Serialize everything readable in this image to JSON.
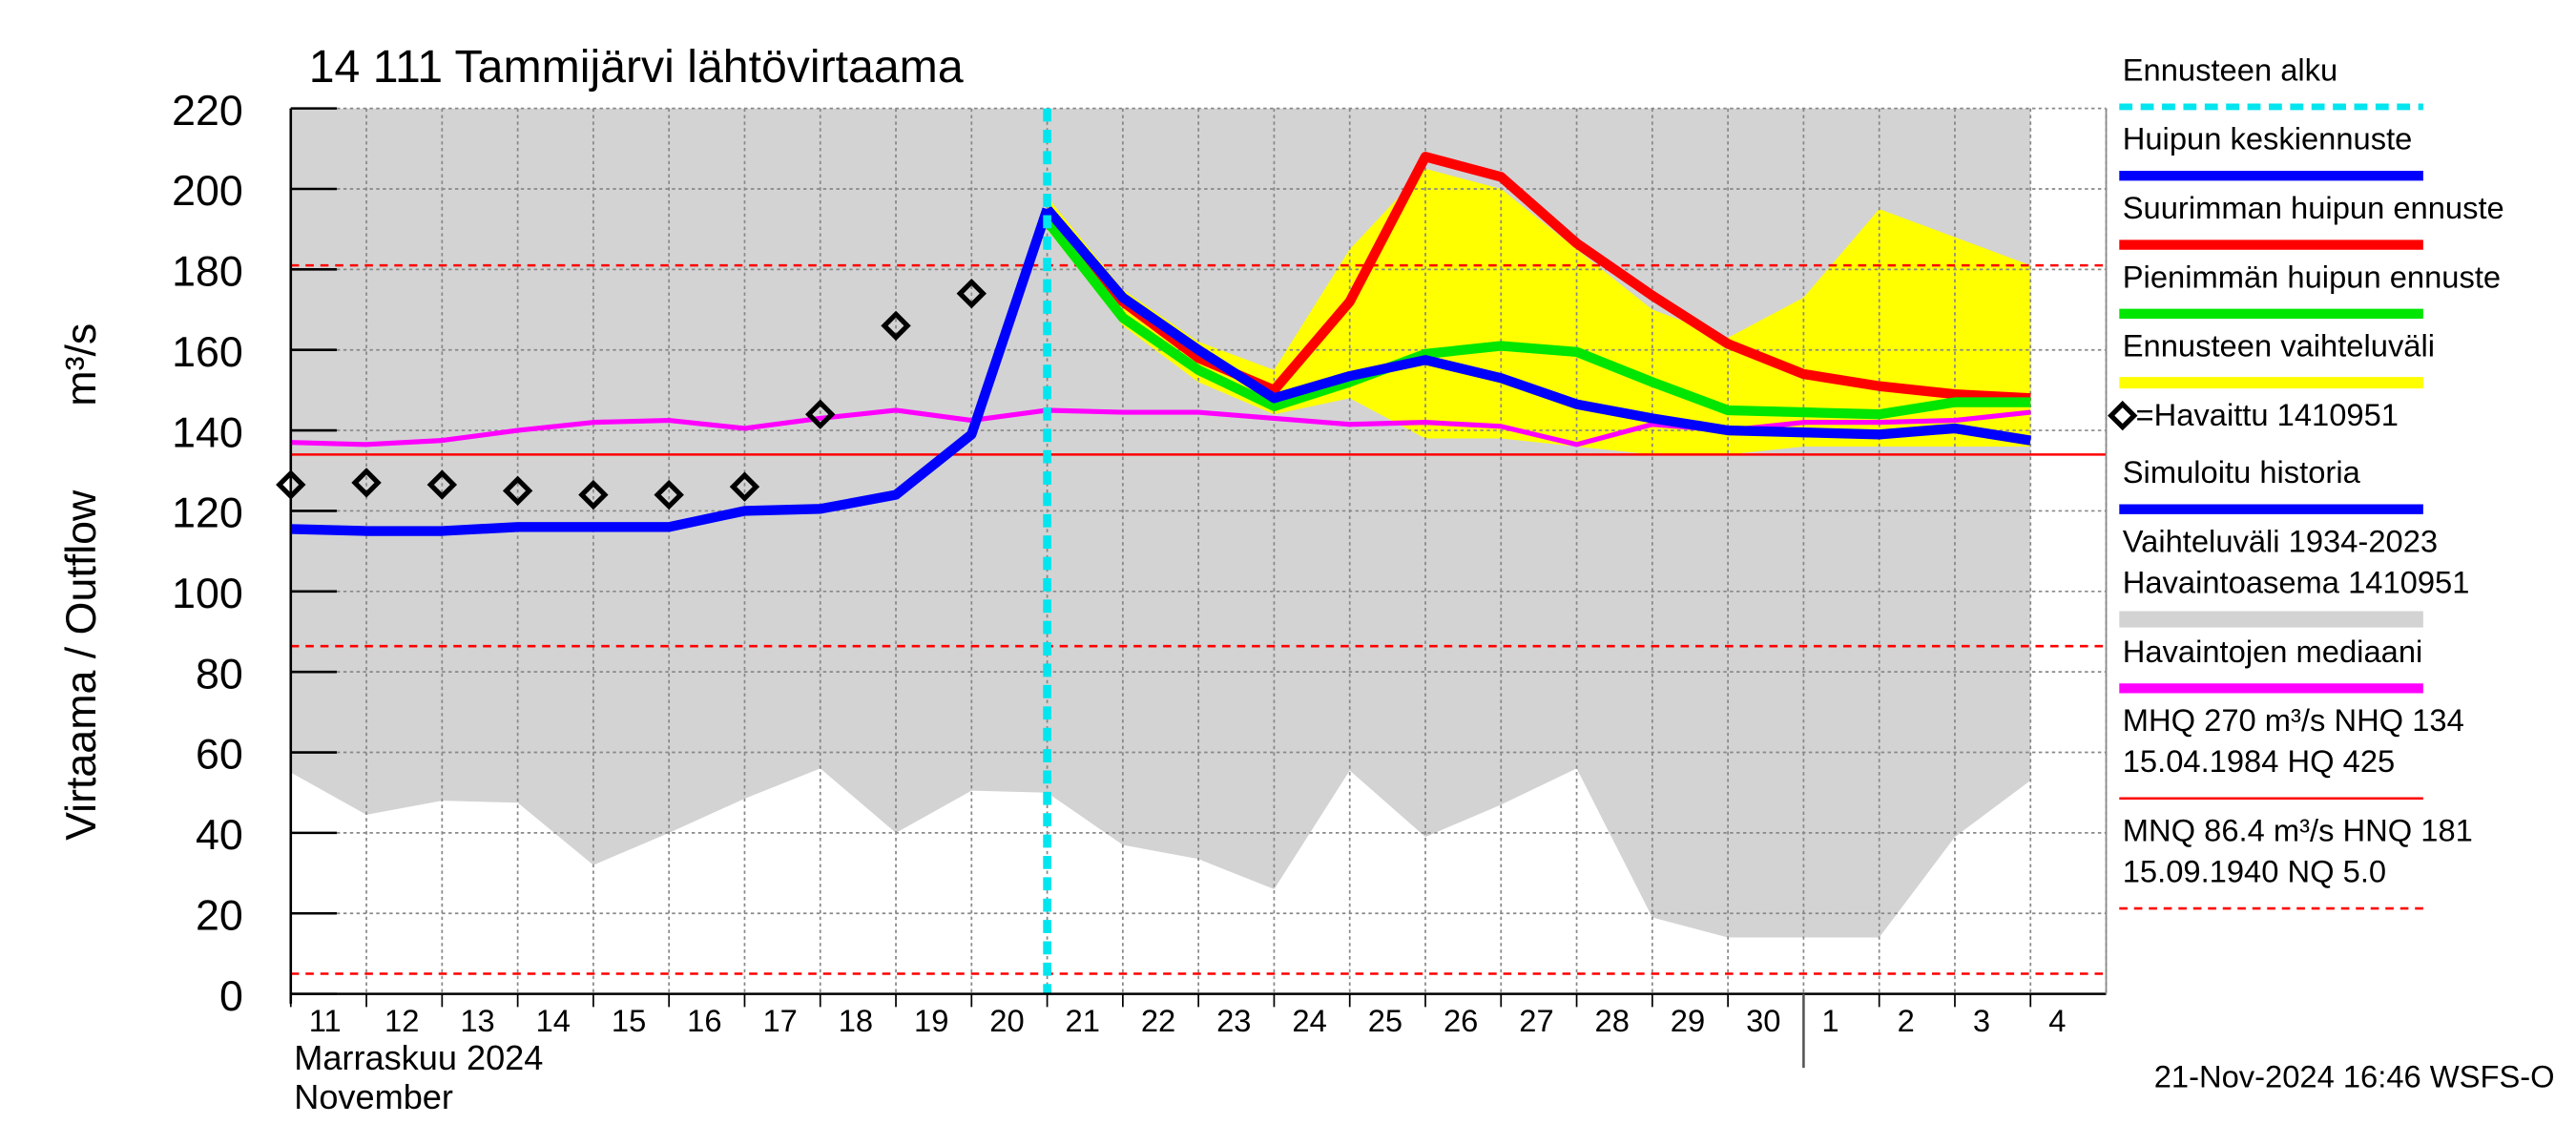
{
  "chart_data": {
    "type": "line",
    "title": "14 111 Tammijärvi lähtövirtaama",
    "ylabel": "Virtaama / Outflow",
    "yunit": "m³/s",
    "xlabel_lines": [
      "Marraskuu 2024",
      "November"
    ],
    "footer": "21-Nov-2024 16:46 WSFS-O",
    "categories": [
      "11",
      "12",
      "13",
      "14",
      "15",
      "16",
      "17",
      "18",
      "19",
      "20",
      "21",
      "22",
      "23",
      "24",
      "25",
      "26",
      "27",
      "28",
      "29",
      "30",
      "1",
      "2",
      "3",
      "4"
    ],
    "ylim": [
      0,
      220
    ],
    "yticks": [
      0,
      20,
      40,
      60,
      80,
      100,
      120,
      140,
      160,
      180,
      200,
      220
    ],
    "grid": true,
    "forecast_start": {
      "name": "Ennusteen alku",
      "color": "#00e5ee",
      "category": "21"
    },
    "series": [
      {
        "name": "Huipun keskiennuste",
        "color": "#0000ff",
        "style": "line",
        "width": 6,
        "values": [
          null,
          null,
          null,
          null,
          null,
          null,
          null,
          null,
          null,
          null,
          195,
          173,
          160,
          148,
          153.5,
          157.5,
          153,
          146.5,
          143,
          140,
          139.5,
          139,
          140.5,
          137.5
        ]
      },
      {
        "name": "Suurimman huipun ennuste",
        "color": "#ff0000",
        "style": "line",
        "width": 6,
        "values": [
          null,
          null,
          null,
          null,
          null,
          null,
          null,
          null,
          null,
          null,
          195,
          172,
          158,
          150,
          172,
          208,
          203,
          186.5,
          173.5,
          161.5,
          154,
          151,
          149,
          148
        ]
      },
      {
        "name": "Pienimmän huipun ennuste",
        "color": "#00e600",
        "style": "line",
        "width": 6,
        "values": [
          null,
          null,
          null,
          null,
          null,
          null,
          null,
          null,
          null,
          null,
          192,
          168,
          155,
          146,
          152,
          159,
          161,
          159.5,
          152,
          145,
          144.5,
          144,
          147,
          147
        ]
      },
      {
        "name": "Ennusteen vaihteluväli",
        "color": "#ffff00",
        "style": "band",
        "upper": [
          null,
          null,
          null,
          null,
          null,
          null,
          null,
          null,
          null,
          null,
          198,
          175,
          162,
          155,
          185,
          205,
          200,
          185,
          170,
          163,
          173,
          195,
          188,
          181
        ],
        "lower": [
          null,
          null,
          null,
          null,
          null,
          null,
          null,
          null,
          null,
          null,
          190,
          166,
          152,
          144,
          148,
          138,
          138,
          136,
          134,
          134,
          136,
          136,
          136,
          136
        ]
      },
      {
        "name": "=Havaittu 1410951",
        "color": "#000000",
        "style": "diamond",
        "values": [
          126.5,
          127,
          126.5,
          125,
          124,
          124,
          126,
          144,
          166,
          174,
          null,
          null,
          null,
          null,
          null,
          null,
          null,
          null,
          null,
          null,
          null,
          null,
          null,
          null
        ]
      },
      {
        "name": "Simuloitu historia",
        "color": "#0000ff",
        "style": "line",
        "width": 6,
        "values": [
          115.5,
          115,
          115,
          116,
          116,
          116,
          120,
          120.5,
          124,
          139,
          195,
          null,
          null,
          null,
          null,
          null,
          null,
          null,
          null,
          null,
          null,
          null,
          null,
          null
        ]
      },
      {
        "name": [
          "Vaihteluväli 1934-2023",
          " Havaintoasema 1410951"
        ],
        "color": "#d3d3d3",
        "style": "band",
        "upper": [
          220,
          220,
          220,
          220,
          220,
          220,
          220,
          220,
          220,
          220,
          220,
          220,
          220,
          220,
          220,
          220,
          220,
          220,
          220,
          220,
          220,
          220,
          220,
          220
        ],
        "lower": [
          55,
          44.5,
          48,
          47.5,
          32,
          40,
          48.5,
          56,
          40,
          50.5,
          50,
          37,
          33.5,
          26,
          55.5,
          39,
          47,
          56,
          19,
          14,
          14,
          14,
          39,
          53
        ]
      },
      {
        "name": "Havaintojen mediaani",
        "color": "#ff00ff",
        "style": "line",
        "width": 3,
        "values": [
          137,
          136.5,
          137.5,
          140,
          142,
          142.5,
          140.5,
          143,
          145,
          142.5,
          145,
          144.5,
          144.5,
          143,
          141.5,
          142,
          141,
          136.5,
          141.5,
          140,
          142,
          142,
          142.5,
          144.5
        ]
      }
    ],
    "reference_lines": [
      {
        "name": [
          "MHQ  270 m³/s NHQ  134",
          "15.04.1984 HQ  425"
        ],
        "color": "#ff0000",
        "dashed": false,
        "values": [
          134
        ]
      },
      {
        "name": [
          "MNQ 86.4 m³/s HNQ  181",
          "15.09.1940 NQ  5.0"
        ],
        "color": "#ff0000",
        "dashed": true,
        "values": [
          181,
          86.4,
          5.0
        ]
      }
    ]
  }
}
